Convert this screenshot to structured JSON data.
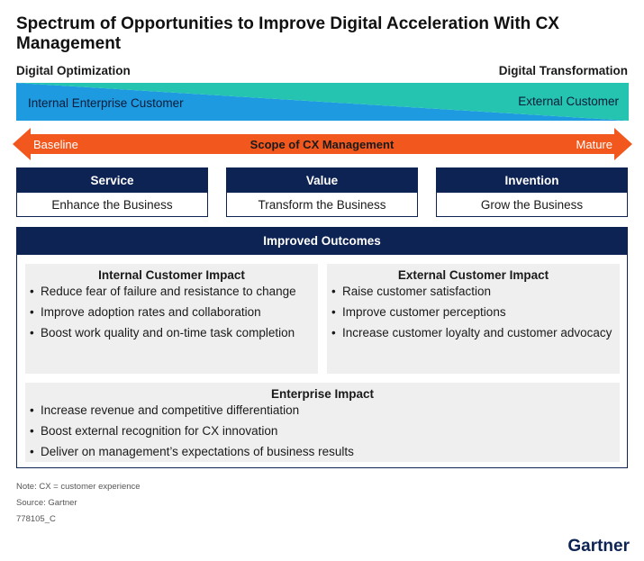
{
  "title": "Spectrum of Opportunities to Improve Digital Acceleration With CX Management",
  "spectrum": {
    "left_label": "Digital Optimization",
    "right_label": "Digital Transformation",
    "internal_label": "Internal Enterprise Customer",
    "external_label": "External Customer",
    "colors": {
      "internal": "#1e9be0",
      "external": "#25c4b0"
    }
  },
  "scope": {
    "left": "Baseline",
    "center": "Scope of CX Management",
    "right": "Mature",
    "color": "#f2581d"
  },
  "columns": [
    {
      "head": "Service",
      "body": "Enhance the Business"
    },
    {
      "head": "Value",
      "body": "Transform the Business"
    },
    {
      "head": "Invention",
      "body": "Grow the Business"
    }
  ],
  "outcomes": {
    "head": "Improved Outcomes",
    "internal": {
      "title": "Internal Customer Impact",
      "items": [
        "Reduce fear of failure and resistance to change",
        "Improve adoption rates and collaboration",
        "Boost work quality and on-time task completion"
      ]
    },
    "external": {
      "title": "External Customer Impact",
      "items": [
        "Raise customer satisfaction",
        "Improve customer perceptions",
        "Increase customer loyalty and customer advocacy"
      ]
    },
    "enterprise": {
      "title": "Enterprise Impact",
      "items": [
        "Increase revenue and competitive differentiation",
        "Boost external recognition for CX innovation",
        "Deliver on management’s expectations of business results"
      ]
    }
  },
  "footer": {
    "note": "Note: CX = customer experience",
    "source": "Source: Gartner",
    "id": "778105_C",
    "logo": "Gartner"
  },
  "theme": {
    "navy": "#0d2353",
    "panel_bg": "#efefef"
  }
}
